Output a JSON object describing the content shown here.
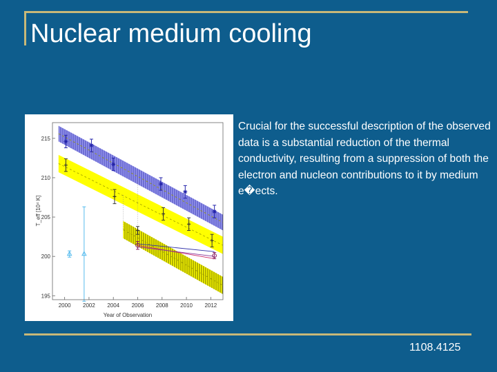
{
  "slide": {
    "title": "Nuclear medium cooling",
    "body_text": "Crucial for the successful description of the observed data is a substantial reduction of the thermal conductivity, resulting from a suppression of both the electron and nucleon contributions to it by medium e�ects.",
    "reference": "1108.4125"
  },
  "colors": {
    "background": "#0e5d8d",
    "accent_line": "#c8b878",
    "text": "#ffffff",
    "band_upper": "#6666dd",
    "band_lower": "#ffff00"
  },
  "chart_data": {
    "type": "scatter",
    "xlabel": "Year of Observation",
    "ylabel": "T_eff [10⁴ K]",
    "xlim": [
      1999,
      2013
    ],
    "ylim": [
      194.5,
      217
    ],
    "x_ticks": [
      "2000",
      "2002",
      "2004",
      "2006",
      "2008",
      "2010",
      "2012"
    ],
    "y_ticks": [
      "195",
      "200",
      "205",
      "210",
      "215"
    ],
    "series": [
      {
        "marker": "star",
        "color": "#2222aa",
        "x": [
          2000.1,
          2002.2,
          2004.0,
          2007.9,
          2009.9,
          2012.3
        ],
        "y": [
          214.6,
          214.1,
          211.7,
          209.2,
          208.2,
          205.7
        ],
        "err": [
          0.8,
          0.8,
          0.8,
          0.8,
          0.8,
          0.8
        ]
      },
      {
        "marker": "plus",
        "color": "#333333",
        "x": [
          2000.1,
          2004.1,
          2008.1,
          2010.2,
          2012.1
        ],
        "y": [
          211.6,
          207.6,
          205.4,
          204.1,
          202.0
        ],
        "err": [
          0.8,
          0.9,
          0.8,
          0.8,
          0.8
        ]
      },
      {
        "marker": "circle",
        "color": "#8a2060",
        "x": [
          2006.0
        ],
        "y": [
          201.4
        ],
        "err": [
          0.5
        ]
      },
      {
        "marker": "plus",
        "color": "#333333",
        "x": [
          2006.0
        ],
        "y": [
          203.3
        ],
        "err": [
          0.5
        ]
      },
      {
        "marker": "triangle",
        "color": "#55bbee",
        "x": [
          2000.4,
          2001.6
        ],
        "y": [
          200.3,
          200.3
        ],
        "err": [
          0.4,
          6.0
        ]
      },
      {
        "marker": "circle",
        "color": "#8a2060",
        "x": [
          2012.3
        ],
        "y": [
          200.1
        ],
        "err": [
          0.4
        ]
      }
    ],
    "bands": [
      {
        "color": "#6666dd",
        "hatched": true,
        "from": [
          1999.5,
          215.6
        ],
        "to": [
          2013,
          204.3
        ],
        "halfwidth": 1.0
      },
      {
        "color": "#ffff00",
        "hatched": false,
        "from": [
          1999.5,
          211.8
        ],
        "to": [
          2013,
          201.4
        ],
        "halfwidth": 1.1
      },
      {
        "color": "#ffff00",
        "hatched": true,
        "from": [
          2004.8,
          203.4
        ],
        "to": [
          2013,
          196.3
        ],
        "halfwidth": 1.1
      }
    ],
    "model_lines": [
      {
        "color": "#cc2266",
        "x": [
          2006.0,
          2012.3
        ],
        "y": [
          201.4,
          199.7
        ]
      },
      {
        "color": "#3333aa",
        "x": [
          2006.0,
          2012.3
        ],
        "y": [
          201.6,
          200.6
        ]
      },
      {
        "color": "#883399",
        "x": [
          2006.0,
          2012.3
        ],
        "y": [
          201.2,
          200.0
        ]
      }
    ]
  }
}
